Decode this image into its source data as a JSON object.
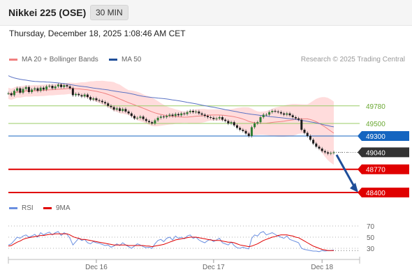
{
  "header": {
    "title": "Nikkei 225 (OSE)",
    "interval": "30 MIN",
    "datetime": "Thursday, December 18, 2025 1:08:46 AM CET"
  },
  "legend": {
    "bb_label": "MA 20 + Bollinger Bands",
    "ma50_label": "MA 50",
    "credit": "Research © 2025 Trading Central"
  },
  "rsi_legend": {
    "rsi_label": "RSI",
    "ma_label": "9MA"
  },
  "colors": {
    "bollinger": "#ffd0d0",
    "ma20": "#f08080",
    "ma50": "#5b73c4",
    "candle": "#2e7d32",
    "green_level": "#99cc66",
    "pivot": "#1565c0",
    "resistance_red": "#e00000",
    "last_price": "#333333",
    "arrow": "#1f4e99",
    "rsi": "#6a8fe0",
    "rsi_ma": "#e00000"
  },
  "chart_data": [
    {
      "type": "candlestick",
      "title": "Nikkei 225 (OSE)",
      "interval": "30 MIN",
      "x_tick_labels": [
        "Dec 16",
        "Dec 17",
        "Dec 18"
      ],
      "ylim": [
        48300,
        50300
      ],
      "closes": [
        49980,
        49950,
        50020,
        50060,
        49990,
        50050,
        50080,
        50000,
        50040,
        50060,
        50020,
        50070,
        50040,
        50090,
        50100,
        50060,
        50090,
        50120,
        50080,
        50110,
        50090,
        50060,
        49950,
        49970,
        49950,
        49930,
        49960,
        49920,
        49880,
        49900,
        49870,
        49860,
        49840,
        49820,
        49780,
        49760,
        49720,
        49740,
        49700,
        49730,
        49690,
        49660,
        49620,
        49580,
        49590,
        49610,
        49570,
        49540,
        49520,
        49500,
        49550,
        49590,
        49610,
        49600,
        49620,
        49640,
        49620,
        49650,
        49630,
        49660,
        49650,
        49680,
        49700,
        49680,
        49690,
        49660,
        49640,
        49620,
        49600,
        49590,
        49570,
        49580,
        49600,
        49560,
        49540,
        49500,
        49520,
        49470,
        49430,
        49400,
        49380,
        49340,
        49300,
        49440,
        49500,
        49520,
        49600,
        49640,
        49640,
        49680,
        49700,
        49690,
        49680,
        49660,
        49640,
        49660,
        49630,
        49600,
        49580,
        49560,
        49400,
        49350,
        49300,
        49240,
        49180,
        49130,
        49100,
        49060,
        49040,
        49020,
        49030,
        49040
      ],
      "ma50": [
        50260,
        50240,
        50225,
        50215,
        50205,
        50195,
        50190,
        50182,
        50175,
        50170,
        50168,
        50165,
        50163,
        50160,
        50158,
        50155,
        50150,
        50145,
        50140,
        50135,
        50128,
        50120,
        50112,
        50104,
        50098,
        50092,
        50086,
        50080,
        50072,
        50064,
        50058,
        50052,
        50046,
        50040,
        50034,
        50026,
        50018,
        50010,
        50002,
        49996,
        49990,
        49982,
        49972,
        49962,
        49950,
        49940,
        49932,
        49926,
        49920,
        49915,
        49910,
        49905,
        49900,
        49895,
        49890,
        49883,
        49876,
        49869,
        49862,
        49855,
        49846,
        49837,
        49829,
        49821,
        49812,
        49802,
        49792,
        49783,
        49774,
        49766,
        49758,
        49749,
        49740,
        49730,
        49720,
        49712,
        49703,
        49694,
        49685,
        49676,
        49668,
        49660,
        49653,
        49646,
        49640,
        49634,
        49628,
        49623,
        49617,
        49611,
        49606,
        49601,
        49596,
        49591,
        49586,
        49581,
        49575,
        49569,
        49563,
        49556,
        49549,
        49542,
        49534,
        49526,
        49518,
        49508,
        49498,
        49487,
        49476,
        49466,
        49455,
        49445
      ],
      "levels": [
        {
          "label": "49780",
          "value": 49780,
          "kind": "resistance"
        },
        {
          "label": "49500",
          "value": 49500,
          "kind": "resistance"
        },
        {
          "label": "49300",
          "value": 49300,
          "kind": "pivot"
        },
        {
          "label": "49040",
          "value": 49040,
          "kind": "last"
        },
        {
          "label": "48770",
          "value": 48770,
          "kind": "support"
        },
        {
          "label": "48400",
          "value": 48400,
          "kind": "support"
        }
      ]
    },
    {
      "type": "line",
      "title": "RSI",
      "yticks": [
        "70",
        "50",
        "30"
      ],
      "ylim": [
        15,
        85
      ],
      "series": [
        {
          "name": "RSI",
          "values": [
            36,
            38,
            44,
            50,
            48,
            52,
            54,
            50,
            52,
            55,
            50,
            58,
            54,
            57,
            59,
            54,
            58,
            60,
            53,
            58,
            55,
            48,
            36,
            42,
            48,
            44,
            46,
            40,
            38,
            42,
            40,
            39,
            37,
            35,
            36,
            32,
            34,
            38,
            35,
            40,
            36,
            33,
            30,
            34,
            38,
            36,
            33,
            31,
            32,
            30,
            38,
            44,
            46,
            42,
            48,
            50,
            45,
            52,
            48,
            50,
            47,
            52,
            54,
            48,
            50,
            45,
            42,
            40,
            44,
            46,
            42,
            45,
            48,
            40,
            38,
            36,
            41,
            35,
            31,
            30,
            32,
            30,
            29,
            48,
            54,
            52,
            58,
            60,
            54,
            56,
            58,
            55,
            52,
            50,
            48,
            52,
            46,
            44,
            42,
            40,
            30,
            28,
            27,
            26,
            25,
            25,
            24,
            26,
            25,
            26,
            26,
            27
          ]
        },
        {
          "name": "9MA",
          "values": [
            34,
            35,
            38,
            41,
            43,
            46,
            48,
            49,
            50,
            51,
            52,
            53,
            53,
            54,
            55,
            55,
            56,
            56,
            56,
            56,
            56,
            54,
            51,
            49,
            48,
            46,
            46,
            45,
            44,
            43,
            42,
            41,
            40,
            39,
            38,
            37,
            36,
            36,
            36,
            36,
            36,
            35,
            35,
            35,
            35,
            35,
            35,
            34,
            34,
            33,
            34,
            35,
            36,
            37,
            39,
            41,
            43,
            45,
            46,
            47,
            48,
            49,
            50,
            50,
            50,
            49,
            48,
            47,
            46,
            45,
            44,
            44,
            44,
            43,
            42,
            41,
            41,
            40,
            38,
            36,
            35,
            34,
            33,
            34,
            36,
            38,
            41,
            44,
            46,
            48,
            50,
            51,
            53,
            54,
            54,
            54,
            53,
            52,
            50,
            49,
            46,
            43,
            40,
            37,
            34,
            32,
            30,
            28,
            27,
            26,
            26,
            26
          ]
        }
      ]
    }
  ]
}
